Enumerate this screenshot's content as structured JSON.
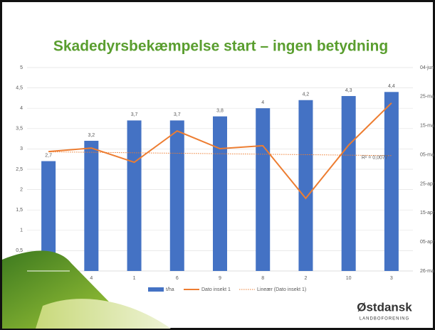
{
  "chart_data": {
    "type": "bar",
    "title": "Skadedyrsbekæmpelse start – ingen betydning",
    "categories": [
      "7",
      "4",
      "1",
      "6",
      "9",
      "8",
      "2",
      "10",
      "3"
    ],
    "series": [
      {
        "name": "t/ha",
        "type": "bar",
        "color": "#4472c4",
        "values": [
          2.7,
          3.2,
          3.7,
          3.7,
          3.8,
          4,
          4.2,
          4.3,
          4.4
        ],
        "value_labels": [
          "2,7",
          "3,2",
          "3,7",
          "3,7",
          "3,8",
          "4",
          "4,2",
          "4,3",
          "4,4"
        ]
      },
      {
        "name": "Dato insekt 1",
        "type": "line",
        "axis": "y2",
        "color": "#ed7d31",
        "values": [
          41.1,
          42.3,
          37.4,
          48.2,
          42.1,
          43.1,
          25,
          43.3,
          57.8
        ]
      }
    ],
    "trendline": {
      "name": "Lineær (Dato insekt 1)",
      "color": "#ed7d31",
      "start": 41,
      "end": 39.7,
      "annotation": "R² = 0,0077"
    },
    "ylim": [
      0,
      5
    ],
    "yticks": [
      {
        "value": 0.5,
        "label": "0,5"
      },
      1,
      {
        "value": 1.5,
        "label": "1,5"
      },
      2,
      {
        "value": 2.5,
        "label": "2,5"
      },
      3,
      {
        "value": 3.5,
        "label": "3,5"
      },
      4,
      {
        "value": 4.5,
        "label": "4,5"
      },
      5
    ],
    "y2lim": [
      0,
      70
    ],
    "y2ticks": [
      {
        "value": 0,
        "label": "26-ma"
      },
      {
        "value": 10,
        "label": "05-apr"
      },
      {
        "value": 20,
        "label": "15-apr"
      },
      {
        "value": 30,
        "label": "25-apr"
      },
      {
        "value": 40,
        "label": "05-ma"
      },
      {
        "value": 50,
        "label": "15-ma"
      },
      {
        "value": 60,
        "label": "25-ma"
      },
      {
        "value": 70,
        "label": "04-jun"
      }
    ],
    "grid": true
  },
  "logo": {
    "name": "Østdansk",
    "subtitle": "LANDBOFORENING"
  }
}
